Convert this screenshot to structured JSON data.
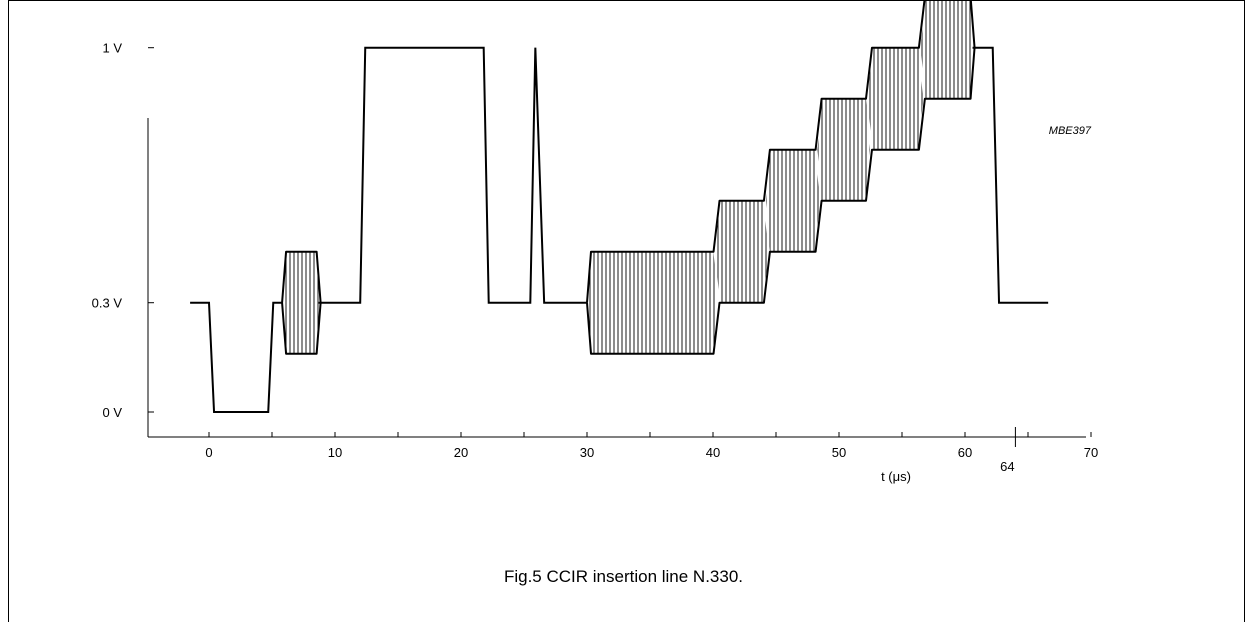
{
  "caption": "Fig.5  CCIR insertion line N.330.",
  "chart_data": {
    "type": "line",
    "code": "MBE397",
    "xlabel": "t (μs)",
    "x_ticks": [
      "0",
      "10",
      "20",
      "30",
      "40",
      "50",
      "60",
      "70"
    ],
    "x_tick_values": [
      0,
      10,
      20,
      30,
      40,
      50,
      60,
      70
    ],
    "x_extra_tick": {
      "label": "64",
      "value": 64
    },
    "y_ticks": [
      {
        "label": "0 V",
        "value": 0
      },
      {
        "label": "0.3 V",
        "value": 0.3
      },
      {
        "label": "1 V",
        "value": 1
      }
    ],
    "xlim": [
      -5,
      70
    ],
    "ylim": [
      0,
      1.15
    ],
    "series": [
      {
        "values": [
          [
            -1.5,
            0.3
          ],
          [
            0,
            0.3
          ],
          [
            0.4,
            0
          ],
          [
            4.7,
            0
          ],
          [
            5.1,
            0.3
          ],
          [
            5.8,
            0.3
          ],
          [
            6.2,
            0.3
          ],
          [
            8.4,
            0.3
          ],
          [
            12,
            0.3
          ],
          [
            12.4,
            1
          ],
          [
            21.8,
            1
          ],
          [
            22.2,
            0.3
          ],
          [
            25.5,
            0.3
          ],
          [
            25.9,
            1
          ],
          [
            26.6,
            0.3
          ],
          [
            29.9,
            0.3
          ],
          [
            30.4,
            0.3
          ],
          [
            62.4,
            0.3
          ],
          [
            62.9,
            0.3
          ],
          [
            66.4,
            0.3
          ]
        ],
        "spike_x": 26.0
      }
    ],
    "modulated_segments": [
      {
        "x_start": 5.8,
        "x_end": 8.7,
        "center": 0.3,
        "amplitude": 0.14
      },
      {
        "x_start": 30.0,
        "x_end": 40.2,
        "center": 0.3,
        "amplitude": 0.14
      },
      {
        "x_start": 40.2,
        "x_end": 44.2,
        "center": 0.44,
        "amplitude": 0.14
      },
      {
        "x_start": 44.2,
        "x_end": 48.3,
        "center": 0.58,
        "amplitude": 0.14
      },
      {
        "x_start": 48.3,
        "x_end": 52.3,
        "center": 0.72,
        "amplitude": 0.14
      },
      {
        "x_start": 52.3,
        "x_end": 56.5,
        "center": 0.86,
        "amplitude": 0.14
      },
      {
        "x_start": 56.5,
        "x_end": 60.6,
        "center": 1.0,
        "amplitude": 0.14
      }
    ],
    "grid": false
  }
}
